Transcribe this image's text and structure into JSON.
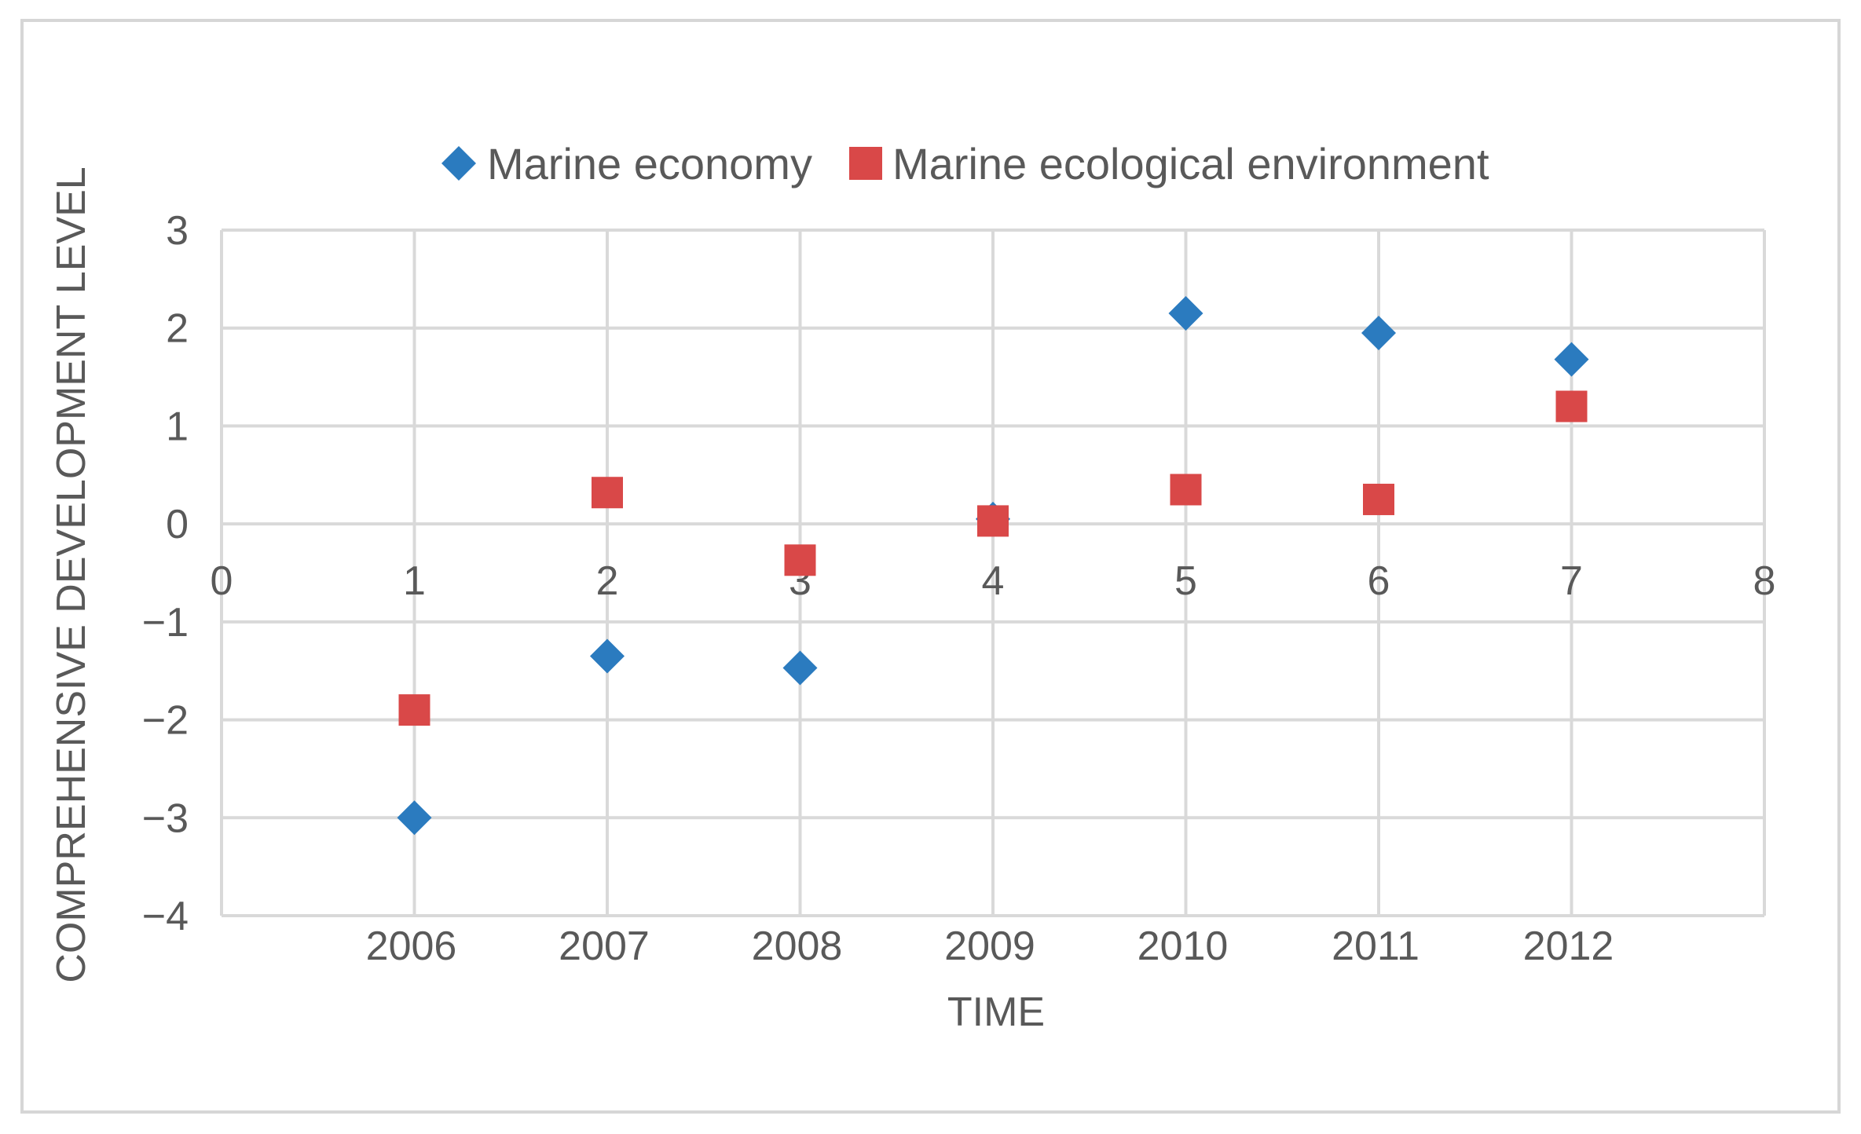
{
  "chart_data": {
    "type": "scatter",
    "xlabel": "TIME",
    "ylabel": "COMPREHENSIVE DEVELOPMENT LEVEL",
    "xlim": [
      0,
      8
    ],
    "ylim": [
      -4,
      3
    ],
    "x_ticks": [
      "0",
      "1",
      "2",
      "3",
      "4",
      "5",
      "6",
      "7",
      "8"
    ],
    "y_ticks": [
      "3",
      "2",
      "1",
      "0",
      "−1",
      "−2",
      "−3",
      "−4"
    ],
    "y_tick_values": [
      3,
      2,
      1,
      0,
      -1,
      -2,
      -3,
      -4
    ],
    "categories": [
      "2006",
      "2007",
      "2008",
      "2009",
      "2010",
      "2011",
      "2012"
    ],
    "category_x": [
      1,
      2,
      3,
      4,
      5,
      6,
      7
    ],
    "grid": true,
    "legend_position": "top-center",
    "series": [
      {
        "name": "Marine economy",
        "marker": "diamond",
        "color": "#2b7bbf",
        "x": [
          1,
          2,
          3,
          4,
          5,
          6,
          7
        ],
        "y": [
          -3.0,
          -1.35,
          -1.47,
          0.05,
          2.15,
          1.95,
          1.68
        ]
      },
      {
        "name": "Marine ecological environment",
        "marker": "square",
        "color": "#d94848",
        "x": [
          1,
          2,
          3,
          4,
          5,
          6,
          7
        ],
        "y": [
          -1.9,
          0.32,
          -0.37,
          0.03,
          0.35,
          0.25,
          1.2
        ]
      }
    ]
  }
}
